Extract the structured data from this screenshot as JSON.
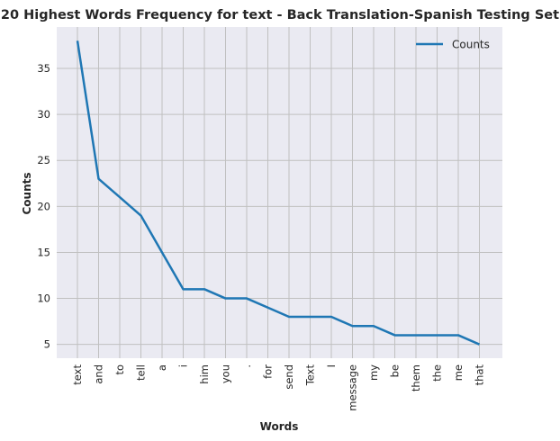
{
  "chart_data": {
    "type": "line",
    "title": "20 Highest Words Frequency for text - Back Translation-Spanish Testing Set",
    "xlabel": "Words",
    "ylabel": "Counts",
    "categories": [
      "text",
      "and",
      "to",
      "tell",
      "a",
      "i",
      "him",
      "you",
      ".",
      "for",
      "send",
      "Text",
      "I",
      "message",
      "my",
      "be",
      "them",
      "the",
      "me",
      "that"
    ],
    "series": [
      {
        "name": "Counts",
        "values": [
          38,
          23,
          21,
          19,
          15,
          11,
          11,
          10,
          10,
          9,
          8,
          8,
          8,
          7,
          7,
          6,
          6,
          6,
          6,
          5
        ]
      }
    ],
    "ylim": [
      3.5,
      39.5
    ],
    "yticks": [
      5,
      10,
      15,
      20,
      25,
      30,
      35
    ],
    "grid": true,
    "legend_position": "top-right",
    "colors": {
      "line": "#1f77b4",
      "plot_bg": "#eaeaf2",
      "grid": "#c0c0c0"
    }
  }
}
